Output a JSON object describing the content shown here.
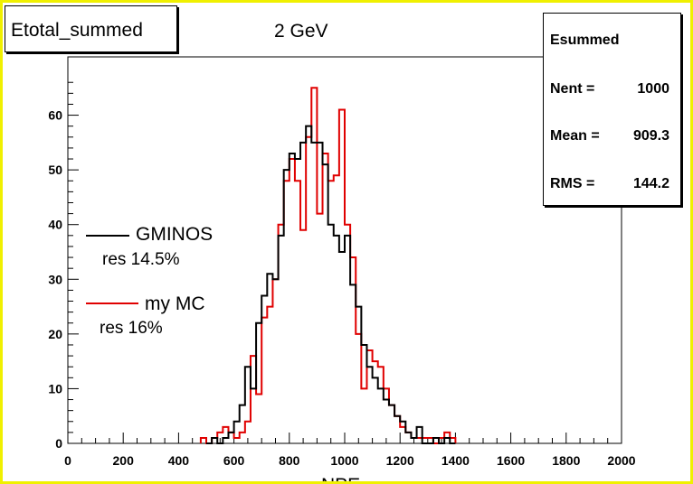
{
  "histogram_name": "Etotal_summed",
  "stats": {
    "title": "Esummed",
    "entries_label": "Nent = ",
    "entries": "1000",
    "mean_label": "Mean  = ",
    "mean": "909.3",
    "rms_label": "RMS   = ",
    "rms": "144.2"
  },
  "legend": {
    "gminos_label": "GMINOS",
    "gminos_res": "res 14.5%",
    "mymc_label": "my MC",
    "mymc_res": "res 16%"
  },
  "colors": {
    "gminos": "#000000",
    "mymc": "#e00000",
    "frame": "#f0f000"
  },
  "chart_data": {
    "type": "line",
    "title": "2 GeV",
    "xlabel": "NPE",
    "ylabel": "",
    "xlim": [
      0,
      2000
    ],
    "ylim": [
      0,
      70
    ],
    "x_ticks": [
      0,
      200,
      400,
      600,
      800,
      1000,
      1200,
      1400,
      1600,
      1800,
      2000
    ],
    "y_ticks": [
      0,
      10,
      20,
      30,
      40,
      50,
      60
    ],
    "bin_width": 20,
    "series": [
      {
        "name": "GMINOS",
        "bin_low_edges": [
          500,
          520,
          540,
          560,
          580,
          600,
          620,
          640,
          660,
          680,
          700,
          720,
          740,
          760,
          780,
          800,
          820,
          840,
          860,
          880,
          900,
          920,
          940,
          960,
          980,
          1000,
          1020,
          1040,
          1060,
          1080,
          1100,
          1120,
          1140,
          1160,
          1180,
          1200,
          1220,
          1240,
          1260,
          1280,
          1300,
          1320,
          1340,
          1360,
          1380
        ],
        "values": [
          0,
          1,
          0,
          1,
          2,
          4,
          7,
          14,
          10,
          22,
          27,
          31,
          30,
          38,
          50,
          53,
          52,
          55,
          58,
          55,
          55,
          51,
          40,
          38,
          35,
          38,
          29,
          25,
          18,
          14,
          12,
          10,
          8,
          7,
          5,
          4,
          2,
          1,
          3,
          0,
          0,
          1,
          0,
          1,
          0
        ]
      },
      {
        "name": "my MC",
        "bin_low_edges": [
          480,
          500,
          520,
          540,
          560,
          580,
          600,
          620,
          640,
          660,
          680,
          700,
          720,
          740,
          760,
          780,
          800,
          820,
          840,
          860,
          880,
          900,
          920,
          940,
          960,
          980,
          1000,
          1020,
          1040,
          1060,
          1080,
          1100,
          1120,
          1140,
          1160,
          1180,
          1200,
          1220,
          1240,
          1260,
          1280,
          1300,
          1320,
          1340,
          1360,
          1380
        ],
        "values": [
          1,
          0,
          1,
          2,
          3,
          2,
          1,
          2,
          4,
          16,
          9,
          23,
          25,
          30,
          40,
          48,
          52,
          48,
          39,
          56,
          65,
          42,
          53,
          48,
          49,
          61,
          40,
          34,
          20,
          10,
          17,
          15,
          14,
          10,
          7,
          5,
          3,
          2,
          1,
          1,
          1,
          1,
          0,
          1,
          2,
          1
        ]
      }
    ]
  }
}
